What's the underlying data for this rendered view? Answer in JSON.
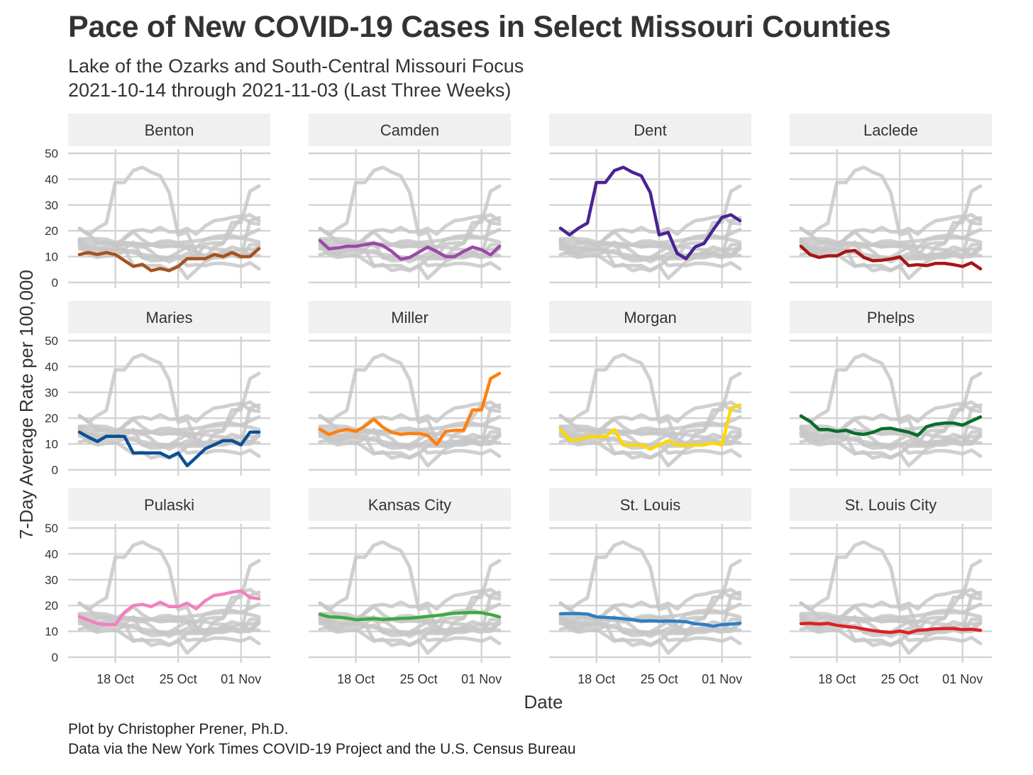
{
  "title": "Pace of New COVID-19 Cases in Select Missouri Counties",
  "subtitle_line1": "Lake of the Ozarks and South-Central Missouri Focus",
  "subtitle_line2": "2021-10-14 through 2021-11-03 (Last Three Weeks)",
  "caption_line1": "Plot by Christopher Prener, Ph.D.",
  "caption_line2": "Data via the New York Times COVID-19 Project and the U.S. Census Bureau",
  "chart_data": {
    "type": "line",
    "xlabel": "Date",
    "ylabel": "7-Day Average Rate per 100,000",
    "x": [
      "2021-10-14",
      "2021-10-15",
      "2021-10-16",
      "2021-10-17",
      "2021-10-18",
      "2021-10-19",
      "2021-10-20",
      "2021-10-21",
      "2021-10-22",
      "2021-10-23",
      "2021-10-24",
      "2021-10-25",
      "2021-10-26",
      "2021-10-27",
      "2021-10-28",
      "2021-10-29",
      "2021-10-30",
      "2021-10-31",
      "2021-11-01",
      "2021-11-02",
      "2021-11-03"
    ],
    "x_ticks": [
      "18 Oct",
      "25 Oct",
      "01 Nov"
    ],
    "x_tick_dates": [
      "2021-10-18",
      "2021-10-25",
      "2021-11-01"
    ],
    "y_ticks": [
      "0",
      "10",
      "20",
      "30",
      "40",
      "50"
    ],
    "ylim": [
      0,
      50
    ],
    "facet_layout": "4 columns x 3 rows",
    "background_color": "#c8c8c8",
    "series": [
      {
        "name": "Benton",
        "color": "#a6521f",
        "values": [
          10.8,
          11.6,
          10.8,
          11.6,
          10.8,
          8.5,
          6.2,
          7.0,
          4.6,
          5.4,
          4.6,
          6.2,
          9.2,
          9.2,
          9.2,
          10.8,
          10.0,
          11.6,
          10.0,
          10.0,
          13.1
        ]
      },
      {
        "name": "Camden",
        "color": "#9a49a8",
        "values": [
          16.2,
          13.0,
          13.4,
          14.0,
          14.0,
          14.6,
          15.2,
          14.3,
          12.0,
          9.0,
          9.7,
          11.7,
          13.7,
          12.0,
          10.0,
          10.0,
          12.0,
          13.7,
          12.7,
          10.7,
          14.0
        ]
      },
      {
        "name": "Dent",
        "color": "#4b2392",
        "values": [
          21.0,
          18.4,
          21.0,
          23.0,
          38.7,
          38.7,
          43.3,
          44.6,
          42.7,
          41.3,
          34.8,
          18.4,
          19.4,
          11.2,
          9.2,
          13.8,
          15.1,
          20.3,
          25.2,
          26.2,
          23.9
        ]
      },
      {
        "name": "Laclede",
        "color": "#a81515",
        "values": [
          14.0,
          10.8,
          9.7,
          10.3,
          10.3,
          12.0,
          12.4,
          9.7,
          8.4,
          8.6,
          9.1,
          9.9,
          6.5,
          6.9,
          6.5,
          7.4,
          7.4,
          6.9,
          6.2,
          7.6,
          5.3
        ]
      },
      {
        "name": "Maries",
        "color": "#0b4f96",
        "values": [
          14.6,
          12.6,
          11.0,
          13.0,
          13.0,
          13.0,
          6.5,
          6.5,
          6.5,
          6.5,
          4.8,
          6.5,
          1.6,
          4.8,
          8.1,
          9.7,
          11.3,
          11.3,
          9.7,
          14.6,
          14.6
        ]
      },
      {
        "name": "Miller",
        "color": "#ff7f0e",
        "values": [
          15.7,
          13.7,
          14.9,
          15.7,
          14.9,
          16.9,
          19.6,
          16.5,
          14.5,
          13.7,
          14.1,
          14.1,
          13.3,
          9.8,
          14.9,
          15.3,
          15.3,
          23.2,
          23.2,
          35.3,
          37.3
        ]
      },
      {
        "name": "Morgan",
        "color": "#ffd700",
        "values": [
          15.6,
          11.6,
          11.6,
          12.8,
          12.8,
          12.8,
          15.6,
          9.6,
          9.6,
          9.6,
          8.0,
          9.6,
          11.2,
          9.6,
          9.6,
          9.6,
          9.6,
          10.4,
          9.6,
          23.9,
          25.1
        ]
      },
      {
        "name": "Phelps",
        "color": "#0a6b2c",
        "values": [
          20.8,
          18.8,
          15.6,
          15.6,
          14.9,
          15.3,
          14.1,
          13.7,
          14.5,
          15.9,
          16.1,
          15.3,
          14.6,
          13.3,
          16.7,
          17.7,
          18.1,
          18.1,
          17.3,
          18.9,
          20.5
        ]
      },
      {
        "name": "Pulaski",
        "color": "#f37fc0",
        "values": [
          15.7,
          14.4,
          13.0,
          12.6,
          12.6,
          17.4,
          20.0,
          20.4,
          19.6,
          21.3,
          19.6,
          19.6,
          20.9,
          18.7,
          21.8,
          23.9,
          24.4,
          25.2,
          25.7,
          23.1,
          22.6
        ]
      },
      {
        "name": "Kansas City",
        "color": "#3fa843",
        "values": [
          16.6,
          15.6,
          15.5,
          15.1,
          14.5,
          14.7,
          14.9,
          14.6,
          14.8,
          15.0,
          15.1,
          15.4,
          15.8,
          16.1,
          16.6,
          17.0,
          17.2,
          17.3,
          17.2,
          16.5,
          15.6
        ]
      },
      {
        "name": "St. Louis",
        "color": "#2f7ec1",
        "values": [
          16.8,
          16.9,
          16.9,
          16.7,
          15.6,
          15.4,
          15.2,
          14.9,
          14.5,
          14.0,
          14.1,
          13.9,
          14.0,
          13.9,
          13.7,
          12.9,
          12.7,
          12.0,
          12.6,
          12.8,
          13.1
        ]
      },
      {
        "name": "St. Louis City",
        "color": "#dd2222",
        "values": [
          13.0,
          13.1,
          12.8,
          13.1,
          12.3,
          11.9,
          11.5,
          10.9,
          10.3,
          9.9,
          9.6,
          10.1,
          9.4,
          10.4,
          10.6,
          11.0,
          11.1,
          11.1,
          10.7,
          10.8,
          10.4
        ]
      }
    ]
  }
}
